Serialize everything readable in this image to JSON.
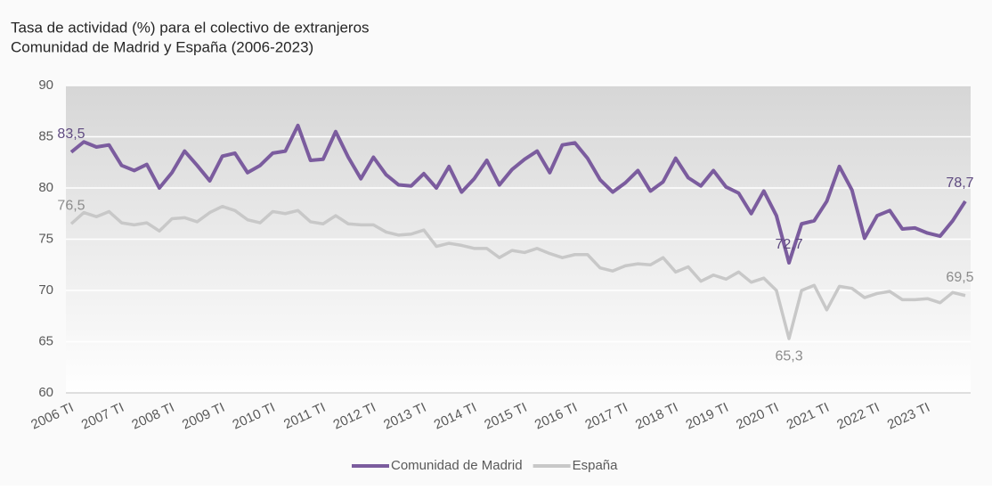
{
  "chart_data": {
    "type": "line",
    "title": "Tasa de actividad (%) para el colectivo de extranjeros",
    "subtitle": "Comunidad de Madrid y España (2006-2023)",
    "categories": [
      "2006 TI",
      null,
      null,
      null,
      "2007 TI",
      null,
      null,
      null,
      "2008 TI",
      null,
      null,
      null,
      "2009 TI",
      null,
      null,
      null,
      "2010 TI",
      null,
      null,
      null,
      "2011 TI",
      null,
      null,
      null,
      "2012 TI",
      null,
      null,
      null,
      "2013 TI",
      null,
      null,
      null,
      "2014 TI",
      null,
      null,
      null,
      "2015 TI",
      null,
      null,
      null,
      "2016 TI",
      null,
      null,
      null,
      "2017 TI",
      null,
      null,
      null,
      "2018 TI",
      null,
      null,
      null,
      "2019 TI",
      null,
      null,
      null,
      "2020 TI",
      null,
      null,
      null,
      "2021 TI",
      null,
      null,
      null,
      "2022 TI",
      null,
      null,
      null,
      "2023 TI",
      null,
      null,
      null
    ],
    "ylim": [
      60,
      90
    ],
    "yticks": [
      60,
      65,
      70,
      75,
      80,
      85,
      90
    ],
    "grid": true,
    "legend": "bottom",
    "series": [
      {
        "name": "Comunidad de Madrid",
        "color": "#7b5c9e",
        "values": [
          83.5,
          84.5,
          84.0,
          84.2,
          82.2,
          81.7,
          82.3,
          80.0,
          81.5,
          83.6,
          82.2,
          80.7,
          83.1,
          83.4,
          81.5,
          82.2,
          83.4,
          83.6,
          86.1,
          82.7,
          82.8,
          85.5,
          83.0,
          80.9,
          83.0,
          81.3,
          80.3,
          80.2,
          81.4,
          80.0,
          82.1,
          79.6,
          80.9,
          82.7,
          80.3,
          81.8,
          82.8,
          83.6,
          81.5,
          84.2,
          84.4,
          82.9,
          80.8,
          79.6,
          80.5,
          81.7,
          79.7,
          80.6,
          82.9,
          81.0,
          80.2,
          81.7,
          80.1,
          79.5,
          77.5,
          79.7,
          77.3,
          72.7,
          76.5,
          76.8,
          78.7,
          82.1,
          79.8,
          75.1,
          77.3,
          77.8,
          76.0,
          76.1,
          75.6,
          75.3,
          76.8,
          78.7
        ],
        "value_labels": [
          "83,5",
          null,
          null,
          null,
          null,
          null,
          null,
          null,
          null,
          null,
          null,
          null,
          null,
          null,
          null,
          null,
          null,
          null,
          null,
          null,
          null,
          null,
          null,
          null,
          null,
          null,
          null,
          null,
          null,
          null,
          null,
          null,
          null,
          null,
          null,
          null,
          null,
          null,
          null,
          null,
          null,
          null,
          null,
          null,
          null,
          null,
          null,
          null,
          null,
          null,
          null,
          null,
          null,
          null,
          null,
          null,
          null,
          "72,7",
          null,
          null,
          null,
          null,
          null,
          null,
          null,
          null,
          null,
          null,
          null,
          null,
          null,
          "78,7"
        ]
      },
      {
        "name": "España",
        "color": "#c8c8c8",
        "values": [
          76.5,
          77.6,
          77.2,
          77.7,
          76.6,
          76.4,
          76.6,
          75.8,
          77.0,
          77.1,
          76.7,
          77.6,
          78.2,
          77.8,
          76.9,
          76.6,
          77.7,
          77.5,
          77.8,
          76.7,
          76.5,
          77.3,
          76.5,
          76.4,
          76.4,
          75.7,
          75.4,
          75.5,
          75.9,
          74.3,
          74.6,
          74.4,
          74.1,
          74.1,
          73.2,
          73.9,
          73.7,
          74.1,
          73.6,
          73.2,
          73.5,
          73.5,
          72.2,
          71.9,
          72.4,
          72.6,
          72.5,
          73.2,
          71.8,
          72.3,
          70.9,
          71.5,
          71.1,
          71.8,
          70.8,
          71.2,
          70.0,
          65.3,
          70.0,
          70.5,
          68.1,
          70.4,
          70.2,
          69.3,
          69.7,
          69.9,
          69.1,
          69.1,
          69.2,
          68.8,
          69.8,
          69.5
        ],
        "value_labels": [
          "76,5",
          null,
          null,
          null,
          null,
          null,
          null,
          null,
          null,
          null,
          null,
          null,
          null,
          null,
          null,
          null,
          null,
          null,
          null,
          null,
          null,
          null,
          null,
          null,
          null,
          null,
          null,
          null,
          null,
          null,
          null,
          null,
          null,
          null,
          null,
          null,
          null,
          null,
          null,
          null,
          null,
          null,
          null,
          null,
          null,
          null,
          null,
          null,
          null,
          null,
          null,
          null,
          null,
          null,
          null,
          null,
          null,
          "65,3",
          null,
          null,
          null,
          null,
          null,
          null,
          null,
          null,
          null,
          null,
          null,
          null,
          null,
          "69,5"
        ]
      }
    ]
  }
}
